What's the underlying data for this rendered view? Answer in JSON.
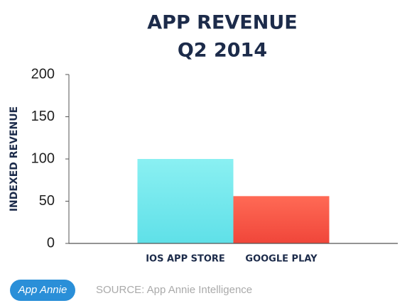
{
  "chart_data": {
    "type": "bar",
    "title": "APP REVENUE",
    "subtitle": "Q2 2014",
    "y_label": "INDEXED REVENUE",
    "categories": [
      "IOS APP STORE",
      "GOOGLE PLAY"
    ],
    "values": [
      100,
      56
    ],
    "colors": [
      "#5fe0e8",
      "#f0463a"
    ],
    "ylim": [
      0,
      200
    ],
    "yticks": [
      0,
      50,
      100,
      150,
      200
    ],
    "grid": false,
    "logo": "App Annie",
    "source": "SOURCE: App Annie Intelligence"
  }
}
